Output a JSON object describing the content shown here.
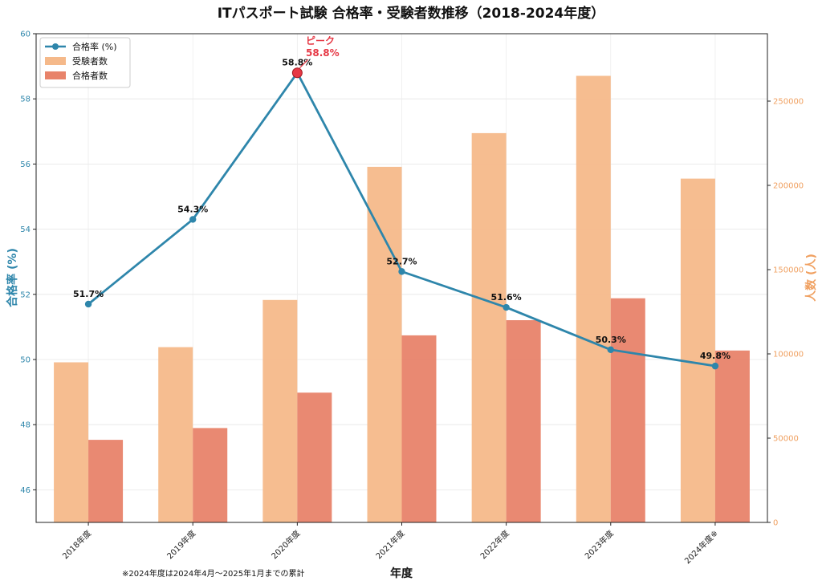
{
  "chart_data": {
    "type": "bar+line",
    "title": "ITパスポート試験 合格率・受験者数推移（2018-2024年度）",
    "xlabel": "年度",
    "ylabel_left": "合格率 (%)",
    "ylabel_right": "人数 (人)",
    "categories": [
      "2018年度",
      "2019年度",
      "2020年度",
      "2021年度",
      "2022年度",
      "2023年度",
      "2024年度※"
    ],
    "series": [
      {
        "name": "合格率 (%)",
        "kind": "line",
        "axis": "left",
        "color": "#2e86ab",
        "values": [
          51.7,
          54.3,
          58.8,
          52.7,
          51.6,
          50.3,
          49.8
        ],
        "labels": [
          "51.7%",
          "54.3%",
          "58.8%",
          "52.7%",
          "51.6%",
          "50.3%",
          "49.8%"
        ]
      },
      {
        "name": "受験者数",
        "kind": "bar",
        "axis": "right",
        "color": "#f5b98a",
        "values": [
          95000,
          104000,
          132000,
          211000,
          231000,
          265000,
          204000
        ]
      },
      {
        "name": "合格者数",
        "kind": "bar",
        "axis": "right",
        "color": "#e8836a",
        "values": [
          49000,
          56000,
          77000,
          111000,
          120000,
          133000,
          102000
        ]
      }
    ],
    "ylim_left": [
      45,
      60
    ],
    "yticks_left": [
      46,
      48,
      50,
      52,
      54,
      56,
      58,
      60
    ],
    "ylim_right": [
      0,
      290000
    ],
    "yticks_right": [
      0,
      50000,
      100000,
      150000,
      200000,
      250000
    ],
    "peak": {
      "index": 2,
      "label_line1": "ピーク",
      "label_line2": "58.8%",
      "color": "#e63946"
    },
    "grid": true,
    "legend_position": "top-left",
    "note": "※2024年度は2024年4月～2025年1月までの累計"
  }
}
